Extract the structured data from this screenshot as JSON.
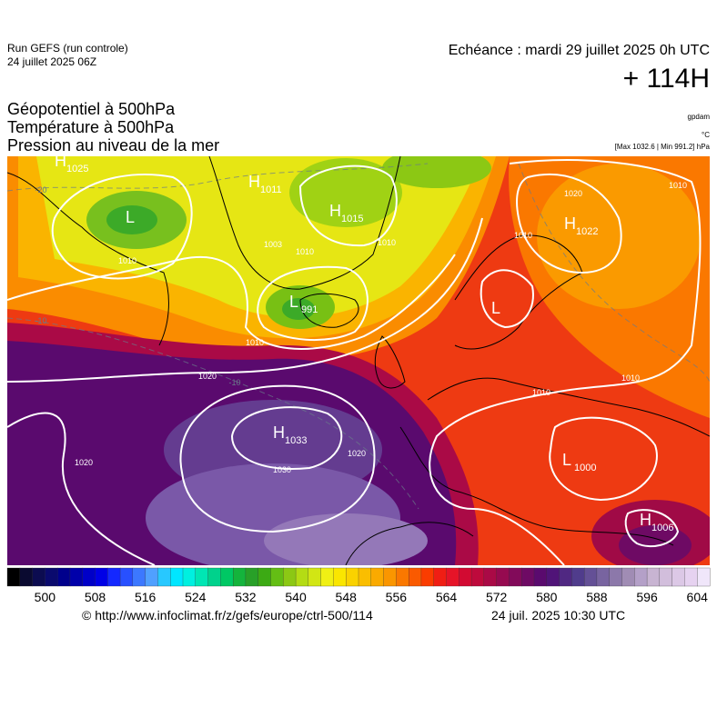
{
  "header": {
    "run": "Run GEFS (run controle)",
    "run_date": "24 juillet 2025 06Z",
    "echeance": "Echéance : mardi 29 juillet 2025 0h UTC",
    "lead": "+ 114H",
    "titles": [
      "Géopotentiel à 500hPa",
      "Température à 500hPa",
      "Pression au niveau de la mer"
    ],
    "units": [
      "gpdam",
      "°C",
      "[Max 1032.6 | Min 991.2] hPa"
    ]
  },
  "map": {
    "centers": [
      {
        "kind": "H",
        "value": 1025
      },
      {
        "kind": "L"
      },
      {
        "kind": "H",
        "value": 1011
      },
      {
        "kind": "H",
        "value": 1015
      },
      {
        "kind": "H",
        "value": 1022
      },
      {
        "kind": "L",
        "value": 991
      },
      {
        "kind": "L"
      },
      {
        "kind": "H",
        "value": 1033
      },
      {
        "kind": "L",
        "value": 1000
      },
      {
        "kind": "H",
        "value": 1006
      }
    ],
    "isobar_labels": [
      1010,
      1003,
      1010,
      1010,
      1010,
      1020,
      1020,
      1030,
      1020,
      1020,
      1010,
      1010,
      1010,
      1010
    ],
    "temperature_labels": [
      -20,
      -10,
      -10
    ]
  },
  "colorbar": {
    "range": [
      494,
      606
    ],
    "ticks": [
      500,
      508,
      516,
      524,
      532,
      540,
      548,
      556,
      564,
      572,
      580,
      588,
      596,
      604
    ],
    "colors": [
      "#000000",
      "#0a0a30",
      "#0c0c50",
      "#0a0a6e",
      "#00008c",
      "#0000aa",
      "#0000c8",
      "#0000e6",
      "#1428ff",
      "#2850ff",
      "#3c78ff",
      "#50a0ff",
      "#28c8ff",
      "#00e6ff",
      "#00f0e0",
      "#00e6b4",
      "#00d28c",
      "#00c864",
      "#14b43c",
      "#28a028",
      "#3caa14",
      "#64be14",
      "#8cc814",
      "#b4dc14",
      "#d2e614",
      "#f0f014",
      "#fae600",
      "#fad200",
      "#fabe00",
      "#faaa00",
      "#fa9600",
      "#fa7800",
      "#fa5a00",
      "#fa3c00",
      "#f01e14",
      "#e61428",
      "#d20a32",
      "#be0a3c",
      "#aa0a46",
      "#960a50",
      "#820a5a",
      "#6e0a64",
      "#5a0a6e",
      "#501478",
      "#502882",
      "#503c8c",
      "#645096",
      "#7864a0",
      "#8c78aa",
      "#a08cb4",
      "#b4a0c8",
      "#c8b4d2",
      "#d2bedc",
      "#dcc8e6",
      "#e6d2f0",
      "#f0e6fa"
    ]
  },
  "footer": {
    "source": "© http://www.infoclimat.fr/z/gefs/europe/ctrl-500/114",
    "issued": "24 juil. 2025 10:30 UTC"
  }
}
